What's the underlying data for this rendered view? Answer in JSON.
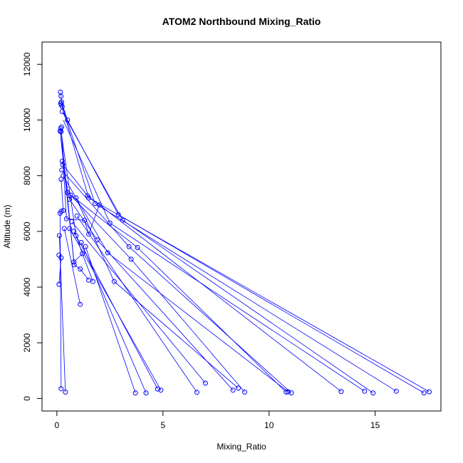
{
  "chart_data": {
    "type": "scatter",
    "title": "ATOM2 Northbound Mixing_Ratio",
    "xlabel": "Mixing_Ratio",
    "ylabel": "Altitude (m)",
    "xlim": [
      -0.7,
      18.1
    ],
    "ylim": [
      -450,
      12800
    ],
    "xticks": [
      0,
      5,
      10,
      15
    ],
    "yticks": [
      0,
      2000,
      4000,
      6000,
      8000,
      10000,
      12000
    ],
    "series_color": "#0000ff",
    "points": [
      [
        0.17,
        11000
      ],
      [
        0.2,
        10850
      ],
      [
        0.22,
        10650
      ],
      [
        0.18,
        10600
      ],
      [
        0.21,
        10550
      ],
      [
        0.25,
        10480
      ],
      [
        0.25,
        10300
      ],
      [
        0.5,
        10000
      ],
      [
        0.22,
        9750
      ],
      [
        0.18,
        9700
      ],
      [
        0.15,
        9600
      ],
      [
        0.2,
        9580
      ],
      [
        0.25,
        8520
      ],
      [
        0.28,
        8400
      ],
      [
        0.23,
        8200
      ],
      [
        0.3,
        8000
      ],
      [
        0.2,
        7870
      ],
      [
        0.5,
        7400
      ],
      [
        0.65,
        7300
      ],
      [
        0.6,
        7150
      ],
      [
        0.9,
        7200
      ],
      [
        1.45,
        7280
      ],
      [
        1.5,
        7200
      ],
      [
        1.8,
        7000
      ],
      [
        2.0,
        6950
      ],
      [
        2.9,
        6600
      ],
      [
        3.1,
        6400
      ],
      [
        2.5,
        6300
      ],
      [
        1.3,
        6400
      ],
      [
        1.5,
        5900
      ],
      [
        0.15,
        6650
      ],
      [
        0.2,
        6720
      ],
      [
        0.3,
        6750
      ],
      [
        0.45,
        6450
      ],
      [
        0.7,
        6350
      ],
      [
        0.35,
        6100
      ],
      [
        0.6,
        6100
      ],
      [
        0.8,
        6000
      ],
      [
        0.95,
        6550
      ],
      [
        0.9,
        5850
      ],
      [
        1.15,
        5600
      ],
      [
        1.35,
        5450
      ],
      [
        1.9,
        5700
      ],
      [
        2.4,
        5230
      ],
      [
        3.4,
        5450
      ],
      [
        3.8,
        5420
      ],
      [
        3.5,
        5000
      ],
      [
        1.2,
        5200
      ],
      [
        0.8,
        4900
      ],
      [
        0.82,
        4800
      ],
      [
        1.1,
        4650
      ],
      [
        1.5,
        4250
      ],
      [
        1.7,
        4200
      ],
      [
        2.7,
        4200
      ],
      [
        0.12,
        5850
      ],
      [
        0.1,
        5150
      ],
      [
        0.2,
        5050
      ],
      [
        0.1,
        4100
      ],
      [
        1.1,
        3380
      ],
      [
        0.2,
        350
      ],
      [
        0.4,
        230
      ],
      [
        3.7,
        200
      ],
      [
        4.2,
        200
      ],
      [
        4.75,
        340
      ],
      [
        4.9,
        300
      ],
      [
        6.6,
        220
      ],
      [
        7.0,
        550
      ],
      [
        8.3,
        300
      ],
      [
        8.55,
        370
      ],
      [
        8.85,
        230
      ],
      [
        10.8,
        230
      ],
      [
        10.9,
        240
      ],
      [
        11.05,
        200
      ],
      [
        13.4,
        250
      ],
      [
        14.5,
        260
      ],
      [
        14.9,
        200
      ],
      [
        16.0,
        260
      ],
      [
        17.3,
        200
      ],
      [
        17.55,
        240
      ]
    ],
    "lines": [
      [
        [
          0.22,
          10650
        ],
        [
          0.5,
          10000
        ],
        [
          2.9,
          6600
        ],
        [
          17.3,
          200
        ]
      ],
      [
        [
          0.25,
          10480
        ],
        [
          1.5,
          7200
        ],
        [
          17.55,
          240
        ]
      ],
      [
        [
          0.2,
          10600
        ],
        [
          1.8,
          7000
        ],
        [
          16.0,
          260
        ]
      ],
      [
        [
          0.25,
          10300
        ],
        [
          3.1,
          6400
        ],
        [
          14.9,
          200
        ]
      ],
      [
        [
          0.3,
          10000
        ],
        [
          2.5,
          6300
        ],
        [
          14.5,
          260
        ]
      ],
      [
        [
          0.28,
          8400
        ],
        [
          1.45,
          7280
        ],
        [
          13.4,
          250
        ]
      ],
      [
        [
          0.23,
          8200
        ],
        [
          3.4,
          5450
        ],
        [
          11.05,
          200
        ]
      ],
      [
        [
          0.3,
          8000
        ],
        [
          2.4,
          5230
        ],
        [
          10.9,
          240
        ]
      ],
      [
        [
          0.5,
          7400
        ],
        [
          3.8,
          5420
        ],
        [
          10.8,
          230
        ]
      ],
      [
        [
          0.65,
          7300
        ],
        [
          3.5,
          5000
        ],
        [
          8.85,
          230
        ]
      ],
      [
        [
          0.9,
          7200
        ],
        [
          2.7,
          4200
        ],
        [
          8.55,
          370
        ]
      ],
      [
        [
          0.6,
          7150
        ],
        [
          1.9,
          5700
        ],
        [
          8.3,
          300
        ]
      ],
      [
        [
          0.7,
          6350
        ],
        [
          7.0,
          550
        ]
      ],
      [
        [
          0.95,
          6550
        ],
        [
          6.6,
          220
        ]
      ],
      [
        [
          0.6,
          6100
        ],
        [
          4.9,
          300
        ]
      ],
      [
        [
          0.8,
          6000
        ],
        [
          4.75,
          340
        ]
      ],
      [
        [
          1.15,
          5600
        ],
        [
          4.2,
          200
        ]
      ],
      [
        [
          1.35,
          5450
        ],
        [
          3.7,
          200
        ]
      ],
      [
        [
          0.35,
          6100
        ],
        [
          1.1,
          3380
        ]
      ],
      [
        [
          0.15,
          6650
        ],
        [
          0.2,
          350
        ]
      ],
      [
        [
          0.12,
          5850
        ],
        [
          0.4,
          230
        ]
      ],
      [
        [
          0.2,
          9750
        ],
        [
          0.45,
          6450
        ],
        [
          1.3,
          6400
        ],
        [
          1.5,
          5900
        ],
        [
          2.0,
          6950
        ]
      ],
      [
        [
          0.18,
          9700
        ],
        [
          0.9,
          5850
        ],
        [
          1.2,
          5200
        ],
        [
          1.7,
          4200
        ]
      ],
      [
        [
          0.15,
          9600
        ],
        [
          0.82,
          4800
        ],
        [
          1.1,
          4650
        ],
        [
          1.5,
          4250
        ]
      ],
      [
        [
          0.2,
          9580
        ],
        [
          0.8,
          4900
        ],
        [
          1.2,
          5200
        ]
      ],
      [
        [
          0.2,
          7870
        ],
        [
          0.3,
          6750
        ],
        [
          0.2,
          6720
        ],
        [
          0.15,
          6650
        ]
      ],
      [
        [
          0.1,
          5150
        ],
        [
          0.2,
          5050
        ],
        [
          0.1,
          4100
        ]
      ],
      [
        [
          0.25,
          8520
        ],
        [
          0.6,
          7150
        ],
        [
          0.65,
          7300
        ]
      ],
      [
        [
          0.17,
          11000
        ],
        [
          0.2,
          10850
        ],
        [
          0.22,
          10650
        ]
      ]
    ]
  }
}
